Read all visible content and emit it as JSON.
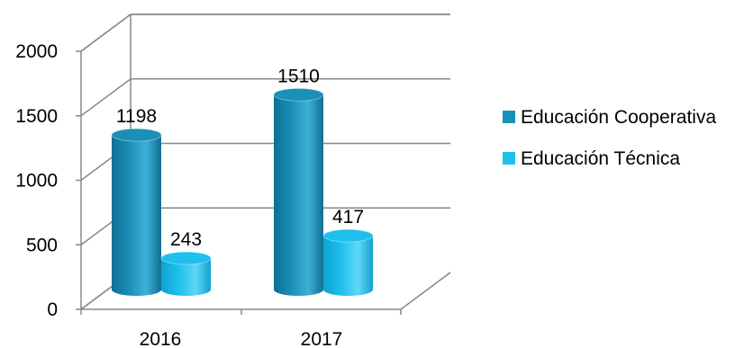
{
  "chart_data": {
    "type": "bar",
    "style": "3d-cylinder",
    "categories": [
      "2016",
      "2017"
    ],
    "series": [
      {
        "name": "Educación Cooperativa",
        "values": [
          1198,
          1510
        ],
        "color": "#1a8fb8"
      },
      {
        "name": "Educación Técnica",
        "values": [
          243,
          417
        ],
        "color": "#1ec0ec"
      }
    ],
    "y_ticks": [
      "0",
      "500",
      "1000",
      "1500",
      "2000"
    ],
    "ylim": [
      0,
      2000
    ],
    "grid": true,
    "legend_position": "right",
    "title": "",
    "xlabel": "",
    "ylabel": ""
  }
}
